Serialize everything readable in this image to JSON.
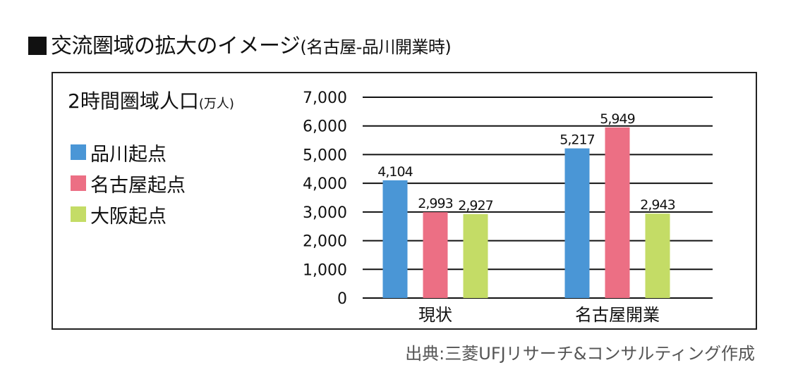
{
  "header": {
    "title_main": "交流圏域の拡大のイメージ",
    "title_sub": "(名古屋-品川開業時)"
  },
  "source": "出典:三菱UFJリサーチ&コンサルティング作成",
  "colors": {
    "shinagawa": "#4a96d6",
    "nagoya": "#ec6f84",
    "osaka": "#c4dc66",
    "grid": "#111111",
    "border": "#222222"
  },
  "chart_data": {
    "type": "bar",
    "ylabel": "2時間圏域人口",
    "ylabel_unit": "(万人)",
    "categories": [
      "現状",
      "名古屋開業"
    ],
    "ylim": [
      0,
      7000
    ],
    "yticks": [
      "0",
      "1,000",
      "2,000",
      "3,000",
      "4,000",
      "5,000",
      "6,000",
      "7,000"
    ],
    "ytick_values": [
      0,
      1000,
      2000,
      3000,
      4000,
      5000,
      6000,
      7000
    ],
    "grid": true,
    "legend_position": "left",
    "series": [
      {
        "name": "品川起点",
        "color": "#4a96d6",
        "values": [
          4104,
          5217
        ],
        "labels": [
          "4,104",
          "5,217"
        ]
      },
      {
        "name": "名古屋起点",
        "color": "#ec6f84",
        "values": [
          2993,
          5949
        ],
        "labels": [
          "2,993",
          "5,949"
        ]
      },
      {
        "name": "大阪起点",
        "color": "#c4dc66",
        "values": [
          2927,
          2943
        ],
        "labels": [
          "2,927",
          "2,943"
        ]
      }
    ]
  }
}
